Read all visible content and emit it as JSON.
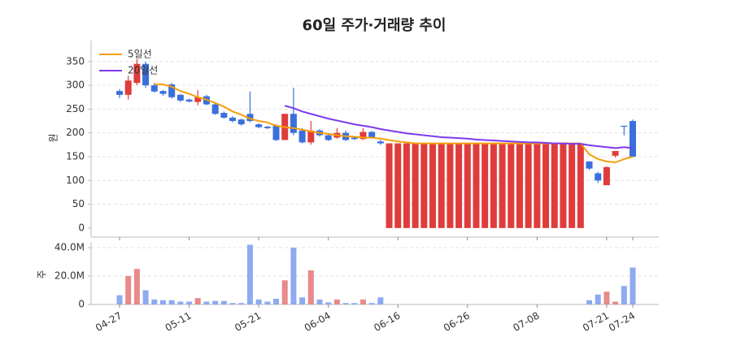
{
  "chart_data": [
    {
      "type": "candlestick",
      "title": "60일 주가·거래량 추이",
      "ylabel": "원",
      "open": [
        288,
        280,
        305,
        345,
        300,
        288,
        302,
        280,
        270,
        265,
        277,
        260,
        242,
        232,
        228,
        240,
        218,
        213,
        215,
        185,
        240,
        205,
        180,
        205,
        195,
        190,
        200,
        190,
        187,
        202,
        182,
        0,
        0,
        0,
        0,
        0,
        0,
        0,
        0,
        0,
        0,
        0,
        0,
        0,
        0,
        0,
        0,
        0,
        0,
        0,
        0,
        0,
        0,
        0,
        140,
        115,
        90,
        152,
        215,
        225
      ],
      "high": [
        292,
        320,
        355,
        350,
        305,
        290,
        305,
        282,
        272,
        290,
        280,
        262,
        245,
        235,
        230,
        287,
        220,
        215,
        218,
        240,
        295,
        210,
        225,
        208,
        198,
        210,
        205,
        192,
        210,
        204,
        185,
        178,
        178,
        178,
        178,
        178,
        178,
        178,
        178,
        178,
        178,
        178,
        178,
        178,
        178,
        178,
        178,
        178,
        178,
        178,
        178,
        178,
        178,
        178,
        140,
        118,
        130,
        162,
        215,
        228
      ],
      "low": [
        273,
        270,
        300,
        295,
        285,
        278,
        272,
        265,
        264,
        258,
        258,
        238,
        230,
        222,
        215,
        222,
        210,
        208,
        183,
        185,
        195,
        178,
        175,
        192,
        183,
        188,
        183,
        185,
        185,
        188,
        175,
        0,
        0,
        0,
        0,
        0,
        0,
        0,
        0,
        0,
        0,
        0,
        0,
        0,
        0,
        0,
        0,
        0,
        0,
        0,
        0,
        0,
        0,
        0,
        122,
        95,
        90,
        148,
        195,
        148
      ],
      "close": [
        280,
        310,
        345,
        300,
        287,
        282,
        275,
        268,
        266,
        275,
        260,
        240,
        232,
        225,
        218,
        225,
        212,
        210,
        185,
        240,
        200,
        180,
        205,
        195,
        185,
        200,
        185,
        187,
        202,
        190,
        178,
        178,
        178,
        178,
        178,
        178,
        178,
        178,
        178,
        178,
        178,
        178,
        178,
        178,
        178,
        178,
        178,
        178,
        178,
        178,
        178,
        178,
        178,
        178,
        125,
        100,
        128,
        162,
        213,
        150
      ],
      "up_color": "#e03c3c",
      "down_color": "#3a6fdc",
      "series": [
        {
          "name": "5일선",
          "color": "#f59e0b",
          "values": [
            null,
            null,
            null,
            null,
            302,
            302,
            297,
            288,
            282,
            275,
            270,
            263,
            255,
            245,
            238,
            230,
            225,
            222,
            215,
            212,
            210,
            207,
            203,
            200,
            198,
            195,
            193,
            192,
            190,
            190,
            188,
            185,
            182,
            180,
            178,
            178,
            178,
            178,
            178,
            178,
            178,
            178,
            178,
            178,
            178,
            178,
            178,
            178,
            178,
            178,
            178,
            178,
            178,
            178,
            155,
            145,
            140,
            138,
            145,
            150
          ]
        },
        {
          "name": "20일선",
          "color": "#7c3aed",
          "values": [
            null,
            null,
            null,
            null,
            null,
            null,
            null,
            null,
            null,
            null,
            null,
            null,
            null,
            null,
            null,
            null,
            null,
            null,
            null,
            257,
            252,
            245,
            240,
            235,
            230,
            226,
            222,
            218,
            215,
            212,
            208,
            205,
            202,
            199,
            197,
            195,
            193,
            191,
            190,
            189,
            188,
            186,
            185,
            184,
            183,
            182,
            181,
            180,
            180,
            179,
            178,
            178,
            177,
            177,
            174,
            172,
            170,
            168,
            170,
            168
          ]
        }
      ],
      "ylim": [
        -19,
        394
      ],
      "yticks": [
        0,
        50,
        100,
        150,
        200,
        250,
        300,
        350
      ],
      "grid": true,
      "legend": "upper left"
    },
    {
      "type": "bar",
      "ylabel": "주",
      "categories": [
        "04-27",
        null,
        null,
        null,
        null,
        null,
        null,
        null,
        "05-11",
        null,
        null,
        null,
        null,
        null,
        null,
        null,
        "05-21",
        null,
        null,
        null,
        null,
        null,
        null,
        null,
        "06-04",
        null,
        null,
        null,
        null,
        null,
        null,
        null,
        "06-16",
        null,
        null,
        null,
        null,
        null,
        null,
        null,
        "06-26",
        null,
        null,
        null,
        null,
        null,
        null,
        null,
        "07-08",
        null,
        null,
        null,
        null,
        null,
        null,
        null,
        "07-21",
        null,
        null,
        "07-24"
      ],
      "values": [
        6500000,
        20000000,
        25000000,
        10000000,
        3500000,
        3000000,
        3000000,
        2000000,
        2000000,
        4500000,
        2000000,
        2500000,
        2500000,
        1000000,
        1000000,
        42000000,
        3500000,
        2000000,
        4000000,
        17000000,
        40000000,
        5000000,
        24000000,
        3500000,
        1500000,
        3500000,
        1000000,
        1000000,
        3500000,
        1000000,
        5000000,
        0,
        0,
        0,
        0,
        0,
        0,
        0,
        0,
        0,
        0,
        0,
        0,
        0,
        0,
        0,
        0,
        0,
        0,
        0,
        0,
        0,
        0,
        0,
        3000000,
        7000000,
        9000000,
        2000000,
        13000000,
        26000000
      ],
      "up_color": "#e88a8a",
      "down_color": "#8eaaf0",
      "ylim": [
        0,
        44000000
      ],
      "yticks": [
        {
          "value": 0,
          "label": "0"
        },
        {
          "value": 20000000,
          "label": "20.0M"
        },
        {
          "value": 40000000,
          "label": "40.0M"
        }
      ],
      "grid": true
    }
  ]
}
